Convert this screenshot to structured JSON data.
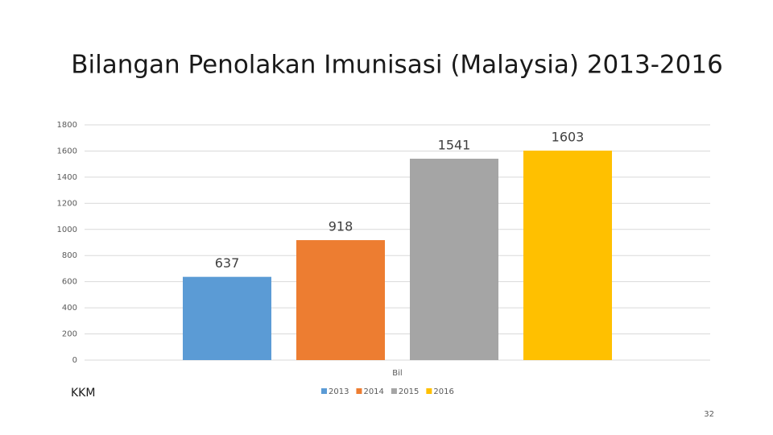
{
  "chart_data": {
    "type": "bar",
    "title": "Bilangan Penolakan Imunisasi (Malaysia) 2013-2016",
    "categories": [
      "Bil"
    ],
    "series": [
      {
        "name": "2013",
        "color": "#5b9bd5",
        "values": [
          637
        ]
      },
      {
        "name": "2014",
        "color": "#ed7d31",
        "values": [
          918
        ]
      },
      {
        "name": "2015",
        "color": "#a5a5a5",
        "values": [
          1541
        ]
      },
      {
        "name": "2016",
        "color": "#ffc000",
        "values": [
          1603
        ]
      }
    ],
    "ylim": [
      0,
      1800
    ],
    "yticks": [
      0,
      200,
      400,
      600,
      800,
      1000,
      1200,
      1400,
      1600,
      1800
    ],
    "grid": true,
    "legend": "bottom"
  },
  "footer_left": "KKM",
  "page_number": "32"
}
